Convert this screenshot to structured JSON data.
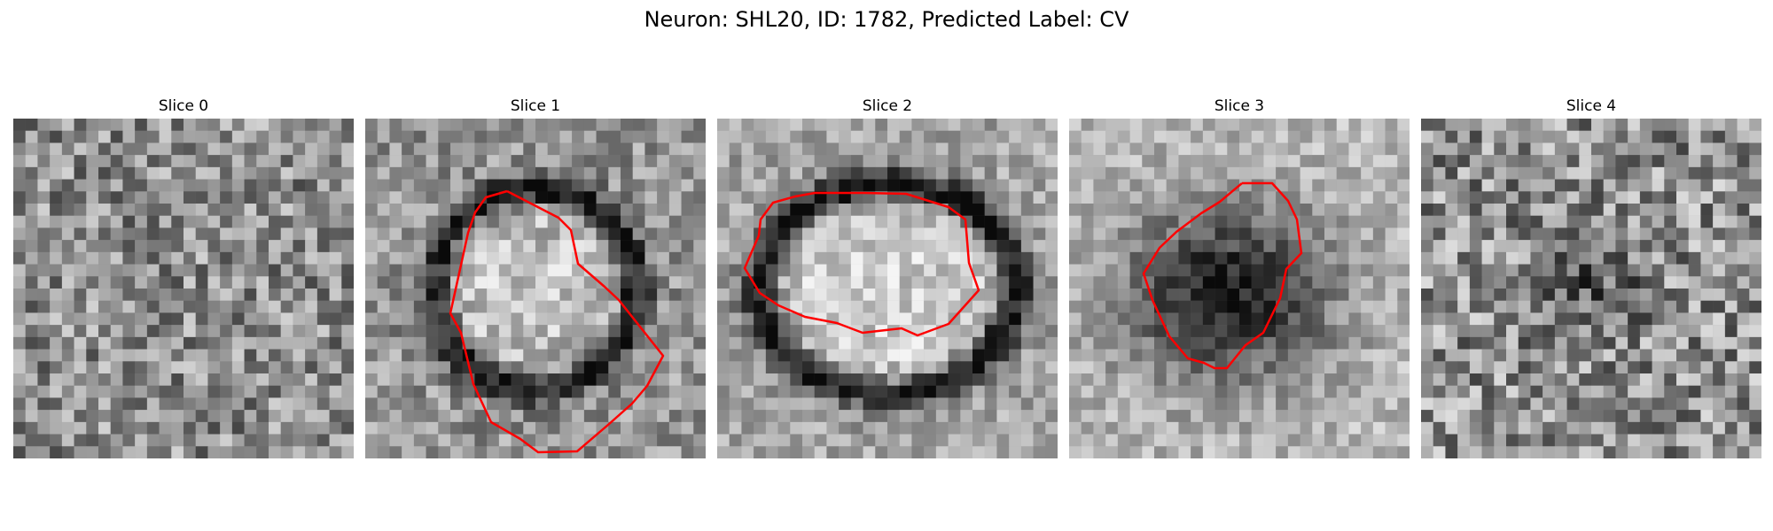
{
  "figure": {
    "title": "Neuron: SHL20, ID: 1782, Predicted Label: CV",
    "panels": [
      {
        "title": "Slice 0",
        "has_contour": false
      },
      {
        "title": "Slice 1",
        "has_contour": true
      },
      {
        "title": "Slice 2",
        "has_contour": true
      },
      {
        "title": "Slice 3",
        "has_contour": true
      },
      {
        "title": "Slice 4",
        "has_contour": false
      }
    ],
    "colormap": "grayscale",
    "contour_color": "#ff0000"
  }
}
